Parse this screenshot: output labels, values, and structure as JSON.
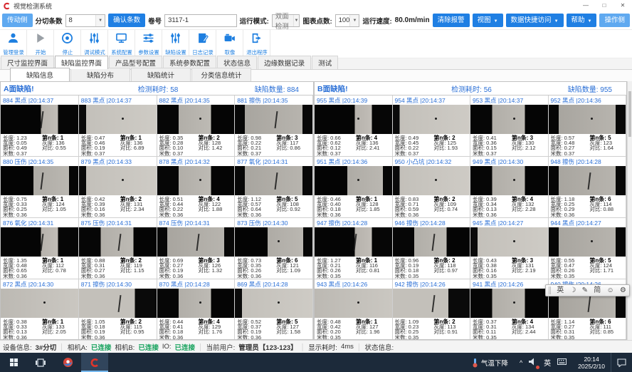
{
  "window": {
    "title": "视觉检测系统",
    "min": "—",
    "max": "□",
    "close": "✕"
  },
  "toolbar1": {
    "drive_side": "传动侧",
    "slit_count_label": "分切条数",
    "slit_count_value": "8",
    "confirm_button": "确认条数",
    "roll_label": "卷号",
    "roll_value": "3117-1",
    "run_mode_label": "运行模式:",
    "run_mode_value": "双面检测",
    "chart_points_label": "图表点数:",
    "chart_points_value": "100",
    "speed_label": "运行速度:",
    "speed_value": "80.0m/min",
    "clear_alarm": "清除报警",
    "view_menu": "视图",
    "data_access_menu": "数据快捷访问",
    "help_menu": "帮助",
    "operate_side": "操作侧",
    "caret": "▼"
  },
  "toolbar2": {
    "items": [
      {
        "label": "管理登录",
        "icon": "user"
      },
      {
        "label": "开始",
        "icon": "play"
      },
      {
        "label": "停止",
        "icon": "stop"
      },
      {
        "label": "调试模式",
        "icon": "tune"
      },
      {
        "label": "系统配置",
        "icon": "monitor"
      },
      {
        "label": "参数设置",
        "icon": "sliders-h"
      },
      {
        "label": "缺陷设置",
        "icon": "sliders-v"
      },
      {
        "label": "日志记录",
        "icon": "log"
      },
      {
        "label": "取像",
        "icon": "camera"
      },
      {
        "label": "退出程序",
        "icon": "exit"
      }
    ]
  },
  "main_tabs": {
    "active": 1,
    "items": [
      "尺寸监控界面",
      "缺陷监控界面",
      "产品型号配置",
      "系统参数配置",
      "状态信息",
      "边缘数据记录",
      "测试"
    ]
  },
  "sub_tabs": {
    "active": 0,
    "items": [
      "缺陷信息",
      "缺陷分布",
      "缺陷统计",
      "分类信息统计"
    ]
  },
  "cell_labels": {
    "length": "长度:",
    "width": "宽度:",
    "area": "面积:",
    "meter": "米数:",
    "strip": "第n条:",
    "gray": "灰度:",
    "contrast": "对比:"
  },
  "panels": [
    {
      "title": "A面缺陷!",
      "elapsed_label": "检测耗时:",
      "elapsed": "58",
      "count_label": "缺陷数量:",
      "count": "884",
      "cells": [
        {
          "id": "884",
          "type": "黑点",
          "time": "20:14:37",
          "len": "1.23",
          "wid": "0.05",
          "area": "0.49",
          "meter": "0.37",
          "strip": "1",
          "gray": "136",
          "contrast": "0.55",
          "pattern": "band-r",
          "mark": "scratch"
        },
        {
          "id": "883",
          "type": "黑点",
          "time": "20:14:37",
          "len": "0.47",
          "wid": "0.46",
          "area": "0.19",
          "meter": "0.37",
          "strip": "1",
          "gray": "136",
          "contrast": "6.89",
          "pattern": "gray-dot",
          "mark": "dot"
        },
        {
          "id": "882",
          "type": "黑点",
          "time": "20:14:35",
          "len": "0.35",
          "wid": "0.28",
          "area": "0.10",
          "meter": "0.37",
          "strip": "2",
          "gray": "128",
          "contrast": "1.42",
          "pattern": "band-c",
          "mark": "dot"
        },
        {
          "id": "881",
          "type": "擦伤",
          "time": "20:14:35",
          "len": "0.98",
          "wid": "0.22",
          "area": "0.21",
          "meter": "0.37",
          "strip": "3",
          "gray": "117",
          "contrast": "0.86",
          "pattern": "band-wide",
          "mark": "scratch"
        },
        {
          "id": "880",
          "type": "压伤",
          "time": "20:14:35",
          "len": "0.75",
          "wid": "0.33",
          "area": "0.25",
          "meter": "0.36",
          "strip": "1",
          "gray": "124",
          "contrast": "1.05",
          "pattern": "band-r2",
          "mark": "scratch"
        },
        {
          "id": "879",
          "type": "黑点",
          "time": "20:14:33",
          "len": "0.42",
          "wid": "0.39",
          "area": "0.16",
          "meter": "0.36",
          "strip": "2",
          "gray": "131",
          "contrast": "2.34",
          "pattern": "gray-dot",
          "mark": "dot"
        },
        {
          "id": "878",
          "type": "黑点",
          "time": "20:14:32",
          "len": "0.51",
          "wid": "0.44",
          "area": "0.22",
          "meter": "0.36",
          "strip": "4",
          "gray": "122",
          "contrast": "1.88",
          "pattern": "band-c",
          "mark": "dot"
        },
        {
          "id": "877",
          "type": "氧化",
          "time": "20:14:31",
          "len": "1.12",
          "wid": "0.57",
          "area": "0.64",
          "meter": "0.36",
          "strip": "5",
          "gray": "108",
          "contrast": "0.92",
          "pattern": "band-wide",
          "mark": "scratch"
        },
        {
          "id": "876",
          "type": "氧化",
          "time": "20:14:31",
          "len": "1.35",
          "wid": "0.48",
          "area": "0.65",
          "meter": "0.36",
          "strip": "1",
          "gray": "112",
          "contrast": "0.78",
          "pattern": "band-r",
          "mark": "scratch"
        },
        {
          "id": "875",
          "type": "压伤",
          "time": "20:14:31",
          "len": "0.88",
          "wid": "0.31",
          "area": "0.27",
          "meter": "0.36",
          "strip": "2",
          "gray": "119",
          "contrast": "1.15",
          "pattern": "band-c",
          "mark": "scratch"
        },
        {
          "id": "874",
          "type": "压伤",
          "time": "20:14:31",
          "len": "0.69",
          "wid": "0.27",
          "area": "0.19",
          "meter": "0.36",
          "strip": "3",
          "gray": "126",
          "contrast": "1.32",
          "pattern": "band-wide",
          "mark": "scratch"
        },
        {
          "id": "873",
          "type": "压伤",
          "time": "20:14:30",
          "len": "0.73",
          "wid": "0.35",
          "area": "0.26",
          "meter": "0.36",
          "strip": "6",
          "gray": "121",
          "contrast": "1.09",
          "pattern": "band-r2",
          "mark": "dot"
        },
        {
          "id": "872",
          "type": "黑点",
          "time": "20:14:30",
          "len": "0.38",
          "wid": "0.33",
          "area": "0.13",
          "meter": "0.36",
          "strip": "1",
          "gray": "133",
          "contrast": "2.05",
          "pattern": "gray",
          "mark": "dot"
        },
        {
          "id": "871",
          "type": "擦伤",
          "time": "20:14:30",
          "len": "1.05",
          "wid": "0.18",
          "area": "0.19",
          "meter": "0.36",
          "strip": "2",
          "gray": "115",
          "contrast": "0.95",
          "pattern": "gray-l",
          "mark": "scratch"
        },
        {
          "id": "870",
          "type": "黑点",
          "time": "20:14:28",
          "len": "0.44",
          "wid": "0.41",
          "area": "0.18",
          "meter": "0.36",
          "strip": "4",
          "gray": "129",
          "contrast": "1.76",
          "pattern": "band-c",
          "mark": "dot"
        },
        {
          "id": "869",
          "type": "黑点",
          "time": "20:14:28",
          "len": "0.52",
          "wid": "0.37",
          "area": "0.19",
          "meter": "0.36",
          "strip": "5",
          "gray": "127",
          "contrast": "1.58",
          "pattern": "gray-dot",
          "mark": "dot"
        }
      ]
    },
    {
      "title": "B面缺陷!",
      "elapsed_label": "检测耗时:",
      "elapsed": "56",
      "count_label": "缺陷数量:",
      "count": "955",
      "cells": [
        {
          "id": "955",
          "type": "黑点",
          "time": "20:14:39",
          "len": "0.66",
          "wid": "0.62",
          "area": "0.12",
          "meter": "0.37",
          "strip": "4",
          "gray": "136",
          "contrast": "2.41",
          "pattern": "band-r",
          "mark": "dot"
        },
        {
          "id": "954",
          "type": "黑点",
          "time": "20:14:37",
          "len": "0.49",
          "wid": "0.45",
          "area": "0.22",
          "meter": "0.37",
          "strip": "2",
          "gray": "125",
          "contrast": "1.93",
          "pattern": "gray-dot",
          "mark": "dot"
        },
        {
          "id": "953",
          "type": "黑点",
          "time": "20:14:37",
          "len": "0.41",
          "wid": "0.36",
          "area": "0.15",
          "meter": "0.37",
          "strip": "3",
          "gray": "130",
          "contrast": "2.12",
          "pattern": "band-c",
          "mark": "dot"
        },
        {
          "id": "952",
          "type": "黑点",
          "time": "20:14:36",
          "len": "0.57",
          "wid": "0.48",
          "area": "0.27",
          "meter": "0.37",
          "strip": "5",
          "gray": "123",
          "contrast": "1.64",
          "pattern": "band-wide",
          "mark": "dot"
        },
        {
          "id": "951",
          "type": "黑点",
          "time": "20:14:36",
          "len": "0.46",
          "wid": "0.40",
          "area": "0.18",
          "meter": "0.36",
          "strip": "1",
          "gray": "128",
          "contrast": "1.85",
          "pattern": "band-r2",
          "mark": "dot"
        },
        {
          "id": "950",
          "type": "小凸坑",
          "time": "20:14:32",
          "len": "0.83",
          "wid": "0.71",
          "area": "0.59",
          "meter": "0.36",
          "strip": "2",
          "gray": "109",
          "contrast": "0.74",
          "pattern": "gray-dot",
          "mark": "dot"
        },
        {
          "id": "949",
          "type": "黑点",
          "time": "20:14:30",
          "len": "0.39",
          "wid": "0.34",
          "area": "0.13",
          "meter": "0.36",
          "strip": "4",
          "gray": "132",
          "contrast": "2.28",
          "pattern": "band-c",
          "mark": "dot"
        },
        {
          "id": "948",
          "type": "擦伤",
          "time": "20:14:28",
          "len": "1.18",
          "wid": "0.25",
          "area": "0.29",
          "meter": "0.36",
          "strip": "6",
          "gray": "114",
          "contrast": "0.88",
          "pattern": "band-wide",
          "mark": "scratch"
        },
        {
          "id": "947",
          "type": "擦伤",
          "time": "20:14:28",
          "len": "1.27",
          "wid": "0.21",
          "area": "0.26",
          "meter": "0.35",
          "strip": "1",
          "gray": "116",
          "contrast": "0.81",
          "pattern": "band-r",
          "mark": "scratch"
        },
        {
          "id": "946",
          "type": "擦伤",
          "time": "20:14:28",
          "len": "0.96",
          "wid": "0.19",
          "area": "0.18",
          "meter": "0.35",
          "strip": "2",
          "gray": "118",
          "contrast": "0.97",
          "pattern": "band-c",
          "mark": "scratch"
        },
        {
          "id": "945",
          "type": "黑点",
          "time": "20:14:27",
          "len": "0.43",
          "wid": "0.38",
          "area": "0.16",
          "meter": "0.35",
          "strip": "3",
          "gray": "131",
          "contrast": "2.19",
          "pattern": "gray-dot",
          "mark": "dot"
        },
        {
          "id": "944",
          "type": "黑点",
          "time": "20:14:27",
          "len": "0.55",
          "wid": "0.47",
          "area": "0.26",
          "meter": "0.35",
          "strip": "5",
          "gray": "124",
          "contrast": "1.71",
          "pattern": "band-wide",
          "mark": "dot"
        },
        {
          "id": "943",
          "type": "黑点",
          "time": "20:14:26",
          "len": "0.48",
          "wid": "0.42",
          "area": "0.20",
          "meter": "0.35",
          "strip": "1",
          "gray": "127",
          "contrast": "1.96",
          "pattern": "gray",
          "mark": "dot"
        },
        {
          "id": "942",
          "type": "擦伤",
          "time": "20:14:26",
          "len": "1.09",
          "wid": "0.23",
          "area": "0.25",
          "meter": "0.35",
          "strip": "2",
          "gray": "113",
          "contrast": "0.91",
          "pattern": "gray-l",
          "mark": "scratch"
        },
        {
          "id": "941",
          "type": "黑点",
          "time": "20:14:26",
          "len": "0.37",
          "wid": "0.31",
          "area": "0.11",
          "meter": "0.35",
          "strip": "4",
          "gray": "134",
          "contrast": "2.44",
          "pattern": "band-c",
          "mark": "dot"
        },
        {
          "id": "940",
          "type": "擦伤",
          "time": "20:14:26",
          "len": "1.14",
          "wid": "0.27",
          "area": "0.31",
          "meter": "0.35",
          "strip": "6",
          "gray": "111",
          "contrast": "0.85",
          "pattern": "band-wide",
          "mark": "scratch"
        }
      ]
    }
  ],
  "ime_bar": {
    "items": [
      {
        "name": "ime-lang-en",
        "glyph": "英"
      },
      {
        "name": "ime-moon-icon",
        "glyph": "☽"
      },
      {
        "name": "ime-pen-icon",
        "glyph": "✎"
      },
      {
        "name": "ime-simplified",
        "glyph": "简"
      },
      {
        "name": "ime-emoji-icon",
        "glyph": "☺"
      },
      {
        "name": "ime-settings-icon",
        "glyph": "⚙"
      }
    ]
  },
  "status_bar": {
    "device_label": "设备信息:",
    "device_value": "3#分切",
    "cam_a_label": "相机A:",
    "cam_a_value": "已连接",
    "cam_b_label": "相机B:",
    "cam_b_value": "已连接",
    "io_label": "IO:",
    "io_value": "已连接",
    "user_label": "当前用户:",
    "user_value": "管理员【123-123】",
    "display_label": "显示耗时:",
    "display_value": "4ms",
    "status_label": "状态信息:"
  },
  "taskbar": {
    "weather_text": "气温下降",
    "tray_chevron": "^",
    "lang_indicator": "英",
    "time": "20:14",
    "date": "2025/2/10"
  },
  "colors": {
    "accent_blue": "#1f7fe3",
    "light_blue": "#5fa9f0",
    "link_blue": "#2a6fd6",
    "ok_green": "#16a25d",
    "taskbar_bg": "#1c2a3a",
    "app_red": "#d7282f"
  }
}
